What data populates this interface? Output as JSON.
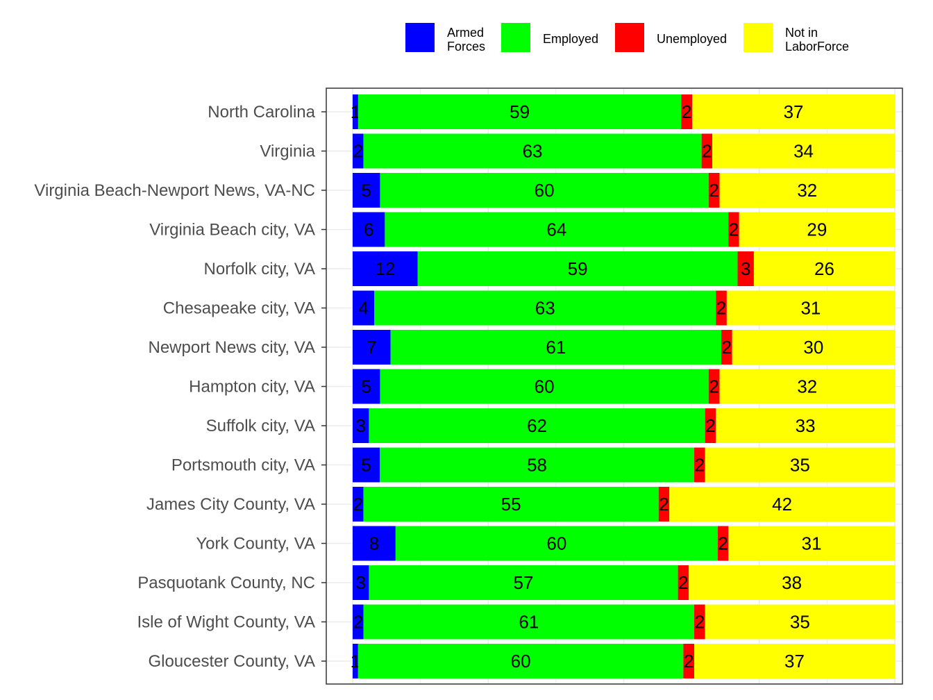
{
  "chart_data": {
    "type": "bar",
    "orientation": "horizontal",
    "stacked": true,
    "normalized": true,
    "categories": [
      "North Carolina",
      "Virginia",
      "Virginia Beach-Newport News, VA-NC",
      "Virginia Beach city, VA",
      "Norfolk city, VA",
      "Chesapeake city, VA",
      "Newport News city, VA",
      "Hampton city, VA",
      "Suffolk city, VA",
      "Portsmouth city, VA",
      "James City County, VA",
      "York County, VA",
      "Pasquotank County, NC",
      "Isle of Wight County, VA",
      "Gloucester County, VA"
    ],
    "series": [
      {
        "name": "Armed Forces",
        "legend_lines": [
          "Armed",
          "Forces"
        ],
        "color": "#0000ff",
        "values": [
          1,
          2,
          5,
          6,
          12,
          4,
          7,
          5,
          3,
          5,
          2,
          8,
          3,
          2,
          1
        ]
      },
      {
        "name": "Employed",
        "legend_lines": [
          "Employed"
        ],
        "color": "#00ff00",
        "values": [
          59,
          63,
          60,
          64,
          59,
          63,
          61,
          60,
          62,
          58,
          55,
          60,
          57,
          61,
          60
        ]
      },
      {
        "name": "Unemployed",
        "legend_lines": [
          "Unemployed"
        ],
        "color": "#ff0000",
        "values": [
          2,
          2,
          2,
          2,
          3,
          2,
          2,
          2,
          2,
          2,
          2,
          2,
          2,
          2,
          2
        ]
      },
      {
        "name": "Not in LaborForce",
        "legend_lines": [
          "Not in",
          "LaborForce"
        ],
        "color": "#ffff00",
        "values": [
          37,
          34,
          32,
          29,
          26,
          31,
          30,
          32,
          33,
          35,
          42,
          31,
          38,
          35,
          37
        ]
      }
    ],
    "title": "",
    "xlabel": "",
    "ylabel": "",
    "x_ticks_shown": false,
    "grid": true,
    "legend_position": "top"
  }
}
